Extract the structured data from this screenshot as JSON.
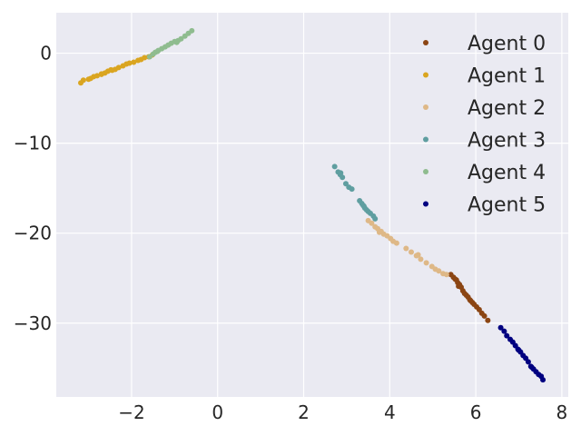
{
  "chart_data": {
    "type": "scatter",
    "title": "",
    "xlabel": "",
    "ylabel": "",
    "xlim": [
      -3.75,
      8.15
    ],
    "ylim": [
      -38.2,
      4.5
    ],
    "xticks": [
      -2,
      0,
      2,
      4,
      6,
      8
    ],
    "yticks": [
      0,
      -10,
      -20,
      -30
    ],
    "xtick_labels": [
      "−2",
      "0",
      "2",
      "4",
      "6",
      "8"
    ],
    "ytick_labels": [
      "0",
      "−10",
      "−20",
      "−30"
    ],
    "grid": true,
    "legend_position": "top-right",
    "background": "#EAEAF2",
    "series": [
      {
        "name": "Agent 0",
        "color": "#8B4513",
        "points": [
          [
            5.42,
            -24.6
          ],
          [
            5.48,
            -24.9
          ],
          [
            5.52,
            -25.1
          ],
          [
            5.55,
            -25.2
          ],
          [
            5.58,
            -25.5
          ],
          [
            5.62,
            -25.7
          ],
          [
            5.66,
            -26.0
          ],
          [
            5.7,
            -26.4
          ],
          [
            5.74,
            -26.7
          ],
          [
            5.78,
            -26.9
          ],
          [
            5.82,
            -27.1
          ],
          [
            5.86,
            -27.4
          ],
          [
            5.92,
            -27.7
          ],
          [
            5.96,
            -27.9
          ],
          [
            6.02,
            -28.2
          ],
          [
            6.08,
            -28.5
          ],
          [
            6.14,
            -28.9
          ],
          [
            6.2,
            -29.2
          ],
          [
            6.28,
            -29.7
          ],
          [
            5.6,
            -25.9
          ],
          [
            5.88,
            -27.5
          ]
        ]
      },
      {
        "name": "Agent 1",
        "color": "#DAA520",
        "points": [
          [
            -3.18,
            -3.3
          ],
          [
            -3.12,
            -3.0
          ],
          [
            -3.0,
            -2.9
          ],
          [
            -2.95,
            -2.8
          ],
          [
            -2.88,
            -2.6
          ],
          [
            -2.8,
            -2.5
          ],
          [
            -2.7,
            -2.3
          ],
          [
            -2.62,
            -2.2
          ],
          [
            -2.55,
            -2.0
          ],
          [
            -2.45,
            -1.9
          ],
          [
            -2.38,
            -1.8
          ],
          [
            -2.3,
            -1.6
          ],
          [
            -2.2,
            -1.4
          ],
          [
            -2.12,
            -1.2
          ],
          [
            -2.05,
            -1.1
          ],
          [
            -1.95,
            -1.0
          ],
          [
            -1.85,
            -0.8
          ],
          [
            -1.78,
            -0.7
          ],
          [
            -1.7,
            -0.5
          ],
          [
            -1.6,
            -0.4
          ],
          [
            -1.52,
            -0.2
          ],
          [
            -2.48,
            -1.85
          ],
          [
            -2.7,
            -2.35
          ]
        ]
      },
      {
        "name": "Agent 2",
        "color": "#DEB887",
        "points": [
          [
            3.5,
            -18.6
          ],
          [
            3.58,
            -18.9
          ],
          [
            3.66,
            -19.3
          ],
          [
            3.72,
            -19.5
          ],
          [
            3.8,
            -19.8
          ],
          [
            3.86,
            -20.1
          ],
          [
            3.94,
            -20.3
          ],
          [
            4.02,
            -20.6
          ],
          [
            4.08,
            -20.9
          ],
          [
            4.16,
            -21.1
          ],
          [
            4.38,
            -21.7
          ],
          [
            4.5,
            -22.1
          ],
          [
            4.62,
            -22.5
          ],
          [
            4.72,
            -22.9
          ],
          [
            4.85,
            -23.3
          ],
          [
            4.98,
            -23.7
          ],
          [
            5.06,
            -24.0
          ],
          [
            5.14,
            -24.2
          ],
          [
            5.24,
            -24.5
          ],
          [
            5.32,
            -24.6
          ],
          [
            3.76,
            -19.9
          ],
          [
            4.66,
            -22.4
          ]
        ]
      },
      {
        "name": "Agent 3",
        "color": "#5F9EA0",
        "points": [
          [
            2.72,
            -12.6
          ],
          [
            2.8,
            -13.2
          ],
          [
            2.85,
            -13.5
          ],
          [
            2.9,
            -13.8
          ],
          [
            2.98,
            -14.5
          ],
          [
            3.05,
            -14.9
          ],
          [
            3.12,
            -15.1
          ],
          [
            3.3,
            -16.4
          ],
          [
            3.35,
            -16.7
          ],
          [
            3.38,
            -16.9
          ],
          [
            3.42,
            -17.2
          ],
          [
            3.46,
            -17.4
          ],
          [
            3.5,
            -17.6
          ],
          [
            3.55,
            -17.8
          ],
          [
            3.62,
            -18.1
          ],
          [
            3.66,
            -18.4
          ],
          [
            2.86,
            -13.3
          ],
          [
            3.4,
            -17.0
          ]
        ]
      },
      {
        "name": "Agent 4",
        "color": "#8FBC8F",
        "points": [
          [
            -1.58,
            -0.4
          ],
          [
            -1.5,
            -0.1
          ],
          [
            -1.45,
            0.1
          ],
          [
            -1.38,
            0.3
          ],
          [
            -1.3,
            0.5
          ],
          [
            -1.22,
            0.7
          ],
          [
            -1.15,
            0.9
          ],
          [
            -1.08,
            1.1
          ],
          [
            -1.0,
            1.3
          ],
          [
            -0.92,
            1.4
          ],
          [
            -0.85,
            1.6
          ],
          [
            -0.76,
            1.9
          ],
          [
            -0.68,
            2.2
          ],
          [
            -0.6,
            2.5
          ],
          [
            -1.4,
            0.2
          ],
          [
            -0.95,
            1.2
          ]
        ]
      },
      {
        "name": "Agent 5",
        "color": "#000080",
        "points": [
          [
            6.58,
            -30.5
          ],
          [
            6.66,
            -30.9
          ],
          [
            6.72,
            -31.4
          ],
          [
            6.8,
            -31.8
          ],
          [
            6.86,
            -32.1
          ],
          [
            6.92,
            -32.5
          ],
          [
            6.98,
            -32.9
          ],
          [
            7.04,
            -33.2
          ],
          [
            7.1,
            -33.6
          ],
          [
            7.16,
            -33.9
          ],
          [
            7.22,
            -34.3
          ],
          [
            7.28,
            -34.8
          ],
          [
            7.34,
            -35.1
          ],
          [
            7.4,
            -35.4
          ],
          [
            7.46,
            -35.7
          ],
          [
            7.52,
            -35.9
          ],
          [
            7.56,
            -36.3
          ],
          [
            7.0,
            -33.0
          ],
          [
            7.3,
            -34.9
          ]
        ]
      }
    ]
  }
}
